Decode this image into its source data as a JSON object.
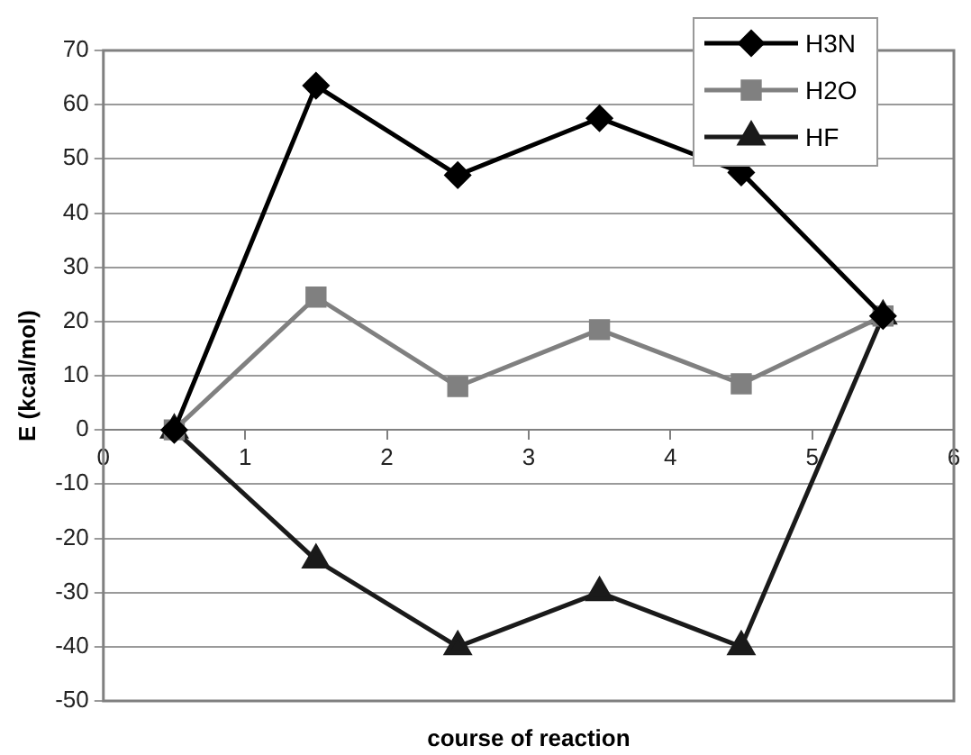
{
  "chart_data": {
    "type": "line",
    "xlabel": "course of reaction",
    "ylabel": "E (kcal/mol)",
    "x": [
      0.5,
      1.5,
      2.5,
      3.5,
      4.5,
      5.5
    ],
    "series": [
      {
        "name": "H3N",
        "color": "#000000",
        "marker": "diamond",
        "values": [
          0,
          63.5,
          47,
          57.5,
          47.5,
          21
        ]
      },
      {
        "name": "H2O",
        "color": "#808080",
        "marker": "square",
        "values": [
          0,
          24.5,
          8,
          18.5,
          8.5,
          21
        ]
      },
      {
        "name": "HF",
        "color": "#1a1a1a",
        "marker": "triangle",
        "values": [
          0,
          -24,
          -40,
          -30,
          -40,
          21
        ]
      }
    ],
    "xlim": [
      0,
      6
    ],
    "xticks": [
      0,
      1,
      2,
      3,
      4,
      5,
      6
    ],
    "ylim": [
      -50,
      70
    ],
    "yticks": [
      -50,
      -40,
      -30,
      -20,
      -10,
      0,
      10,
      20,
      30,
      40,
      50,
      60,
      70
    ],
    "grid": "y",
    "legend": "top right"
  }
}
